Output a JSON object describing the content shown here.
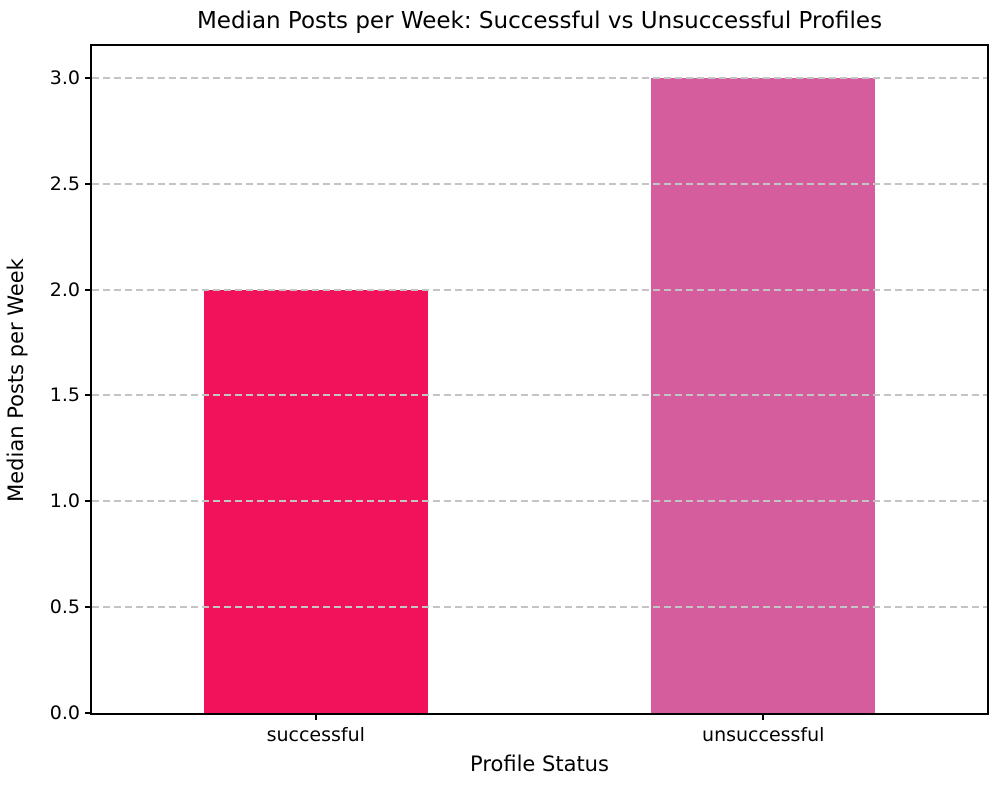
{
  "chart_data": {
    "type": "bar",
    "title": "Median Posts per Week: Successful vs Unsuccessful Profiles",
    "xlabel": "Profile Status",
    "ylabel": "Median Posts per Week",
    "categories": [
      "successful",
      "unsuccessful"
    ],
    "values": [
      2.0,
      3.0
    ],
    "bar_colors": [
      "#f2115b",
      "#d55c9d"
    ],
    "yticks": [
      0.0,
      0.5,
      1.0,
      1.5,
      2.0,
      2.5,
      3.0
    ],
    "ytick_labels": [
      "0.0",
      "0.5",
      "1.0",
      "1.5",
      "2.0",
      "2.5",
      "3.0"
    ],
    "ylim": [
      0,
      3.15
    ],
    "grid": "horizontal-dashed-over-bars",
    "gridline_color": "#c4c4c4",
    "spine_color": "#000000",
    "legend_position": "none"
  }
}
